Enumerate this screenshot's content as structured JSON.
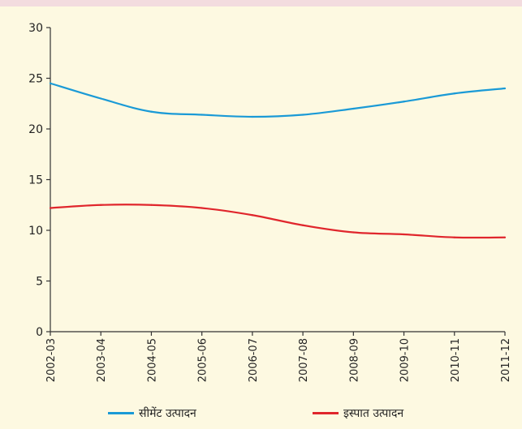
{
  "chart_data": {
    "type": "line",
    "title": "",
    "xlabel": "",
    "ylabel": "",
    "categories": [
      "2002-03",
      "2003-04",
      "2004-05",
      "2005-06",
      "2006-07",
      "2007-08",
      "2008-09",
      "2009-10",
      "2010-11",
      "2011-12"
    ],
    "ylim": [
      0,
      30
    ],
    "yticks": [
      "0",
      "5",
      "10",
      "15",
      "20",
      "25",
      "30"
    ],
    "grid": false,
    "legend_position": "bottom",
    "series": [
      {
        "name": "सीमेंट उत्पादन",
        "color": "#1a9ad6",
        "values": [
          24.5,
          23.0,
          21.7,
          21.4,
          21.2,
          21.4,
          22.0,
          22.7,
          23.5,
          24.0
        ]
      },
      {
        "name": "इस्पात उत्पादन",
        "color": "#e0262c",
        "values": [
          12.2,
          12.5,
          12.5,
          12.2,
          11.5,
          10.5,
          9.8,
          9.6,
          9.3,
          9.3
        ]
      }
    ]
  }
}
